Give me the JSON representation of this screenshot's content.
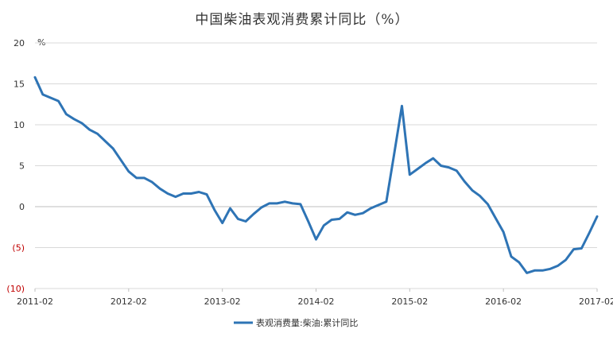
{
  "chart_data": {
    "type": "line",
    "title": "中国柴油表观消费累计同比（%）",
    "unit_label": "%",
    "xlabel": "",
    "ylabel": "",
    "ylim": [
      -10,
      20
    ],
    "y_ticks": [
      {
        "value": 20,
        "label": "20",
        "color": "#333333"
      },
      {
        "value": 15,
        "label": "15",
        "color": "#333333"
      },
      {
        "value": 10,
        "label": "10",
        "color": "#333333"
      },
      {
        "value": 5,
        "label": "5",
        "color": "#333333"
      },
      {
        "value": 0,
        "label": "0",
        "color": "#333333"
      },
      {
        "value": -5,
        "label": "(5)",
        "color": "#c00000"
      },
      {
        "value": -10,
        "label": "(10)",
        "color": "#c00000"
      }
    ],
    "x_tick_labels": [
      "2011-02",
      "2012-02",
      "2013-02",
      "2014-02",
      "2015-02",
      "2016-02",
      "2017-02"
    ],
    "grid": {
      "horizontal": true,
      "vertical": false
    },
    "legend": {
      "position": "bottom"
    },
    "colors": {
      "series": "#2e74b5",
      "grid": "#d9d9d9",
      "negative_tick": "#c00000"
    },
    "series": [
      {
        "name": "表观消费量:柴油:累计同比",
        "x_start": "2011-02",
        "values": [
          15.8,
          13.7,
          13.3,
          12.9,
          11.3,
          10.7,
          10.2,
          9.4,
          8.9,
          8.0,
          7.1,
          5.7,
          4.3,
          3.5,
          3.5,
          3.0,
          2.2,
          1.6,
          1.2,
          1.6,
          1.6,
          1.8,
          1.5,
          -0.4,
          -2.0,
          -0.2,
          -1.5,
          -1.8,
          -0.9,
          -0.1,
          0.4,
          0.4,
          0.6,
          0.4,
          0.3,
          -1.8,
          -4.0,
          -2.3,
          -1.6,
          -1.5,
          -0.7,
          -1.0,
          -0.8,
          -0.2,
          0.2,
          0.6,
          6.4,
          12.3,
          3.9,
          4.6,
          5.3,
          5.9,
          5.0,
          4.8,
          4.4,
          3.1,
          2.0,
          1.3,
          0.3,
          -1.4,
          -3.1,
          -6.1,
          -6.8,
          -8.1,
          -7.8,
          -7.8,
          -7.6,
          -7.2,
          -6.5,
          -5.2,
          -5.1,
          -3.2,
          -1.2
        ]
      }
    ]
  }
}
